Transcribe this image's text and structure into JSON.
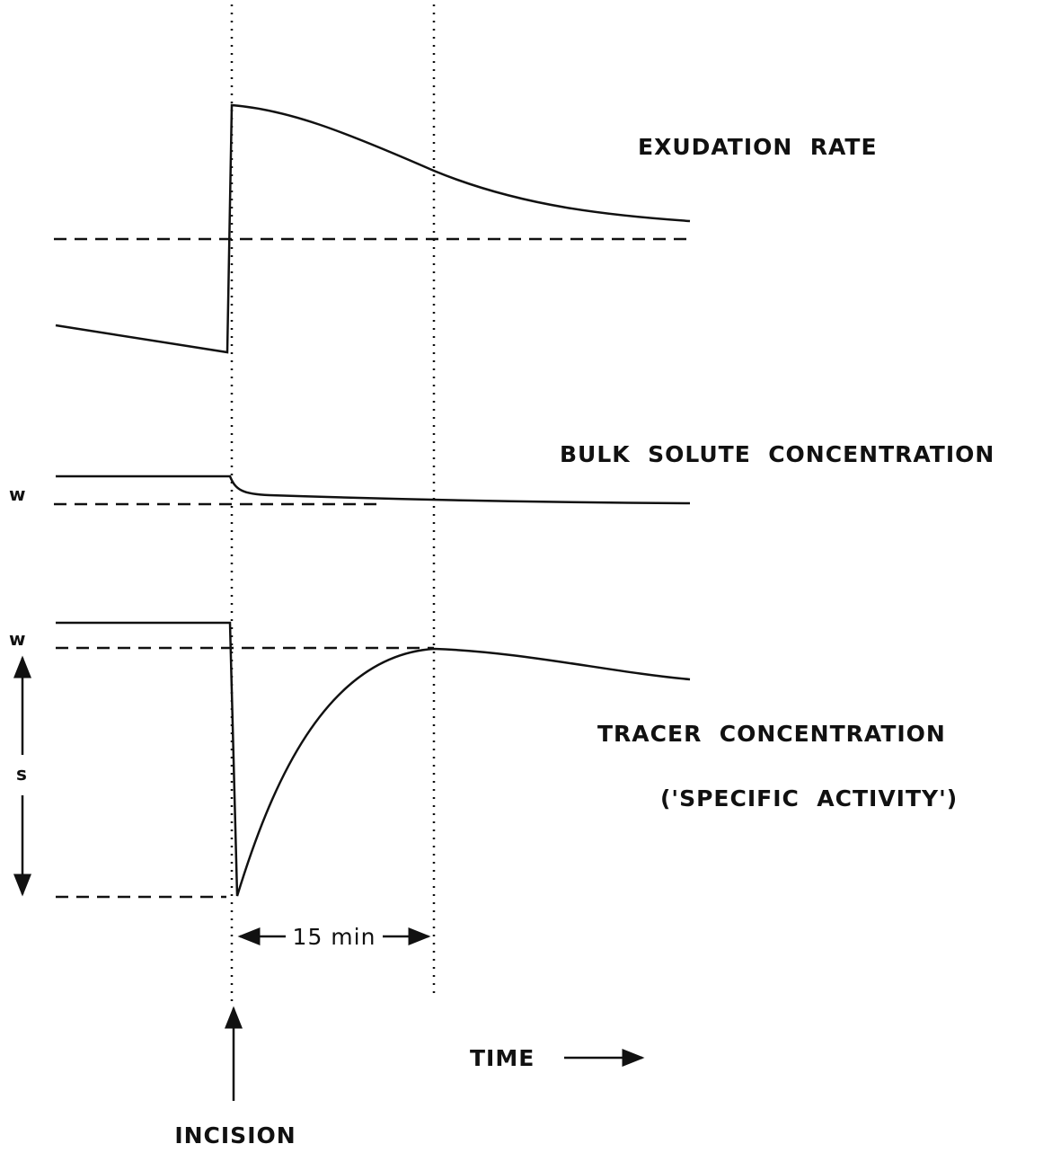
{
  "labels": {
    "exudation": "EXUDATION  RATE",
    "bulk": "BULK  SOLUTE  CONCENTRATION",
    "tracer": "TRACER  CONCENTRATION",
    "specific": "('SPECIFIC  ACTIVITY')",
    "w_bulk": "w",
    "w_tracer": "w",
    "s": "s",
    "interval": "15 min",
    "time": "TIME",
    "incision": "INCISION"
  }
}
